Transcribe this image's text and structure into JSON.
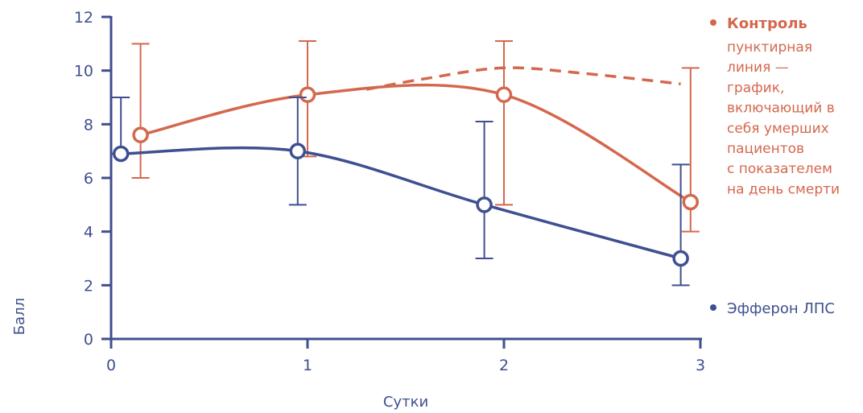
{
  "chart_data": {
    "type": "line",
    "xlabel": "Сутки",
    "ylabel": "Балл",
    "xlim": [
      0,
      3
    ],
    "ylim": [
      0,
      12
    ],
    "x_ticks": [
      "0",
      "1",
      "2",
      "3"
    ],
    "y_ticks": [
      "0",
      "2",
      "4",
      "6",
      "8",
      "10",
      "12"
    ],
    "grid": false,
    "legend_position": "right",
    "series": [
      {
        "name": "Контроль",
        "color": "#d4684e",
        "note": "пунктирная линия — график, включающий в себя умерших пациентов с показателем на день смерти",
        "x": [
          0.15,
          1.0,
          2.0,
          2.95
        ],
        "y": [
          7.6,
          9.1,
          9.1,
          5.1
        ],
        "error_low": [
          6.0,
          6.8,
          5.0,
          4.0
        ],
        "error_high": [
          11.0,
          11.1,
          11.1,
          10.1
        ],
        "dashed": {
          "x": [
            1.3,
            1.6,
            2.0,
            2.4,
            2.9
          ],
          "y": [
            9.3,
            9.7,
            10.1,
            9.9,
            9.5
          ]
        }
      },
      {
        "name": "Эфферон ЛПС",
        "color": "#3f4f8f",
        "x": [
          0.05,
          0.95,
          1.9,
          2.9
        ],
        "y": [
          6.9,
          7.0,
          5.0,
          3.0
        ],
        "error_low": [
          6.9,
          5.0,
          3.0,
          2.0
        ],
        "error_high": [
          9.0,
          9.0,
          8.1,
          6.5
        ]
      }
    ]
  }
}
